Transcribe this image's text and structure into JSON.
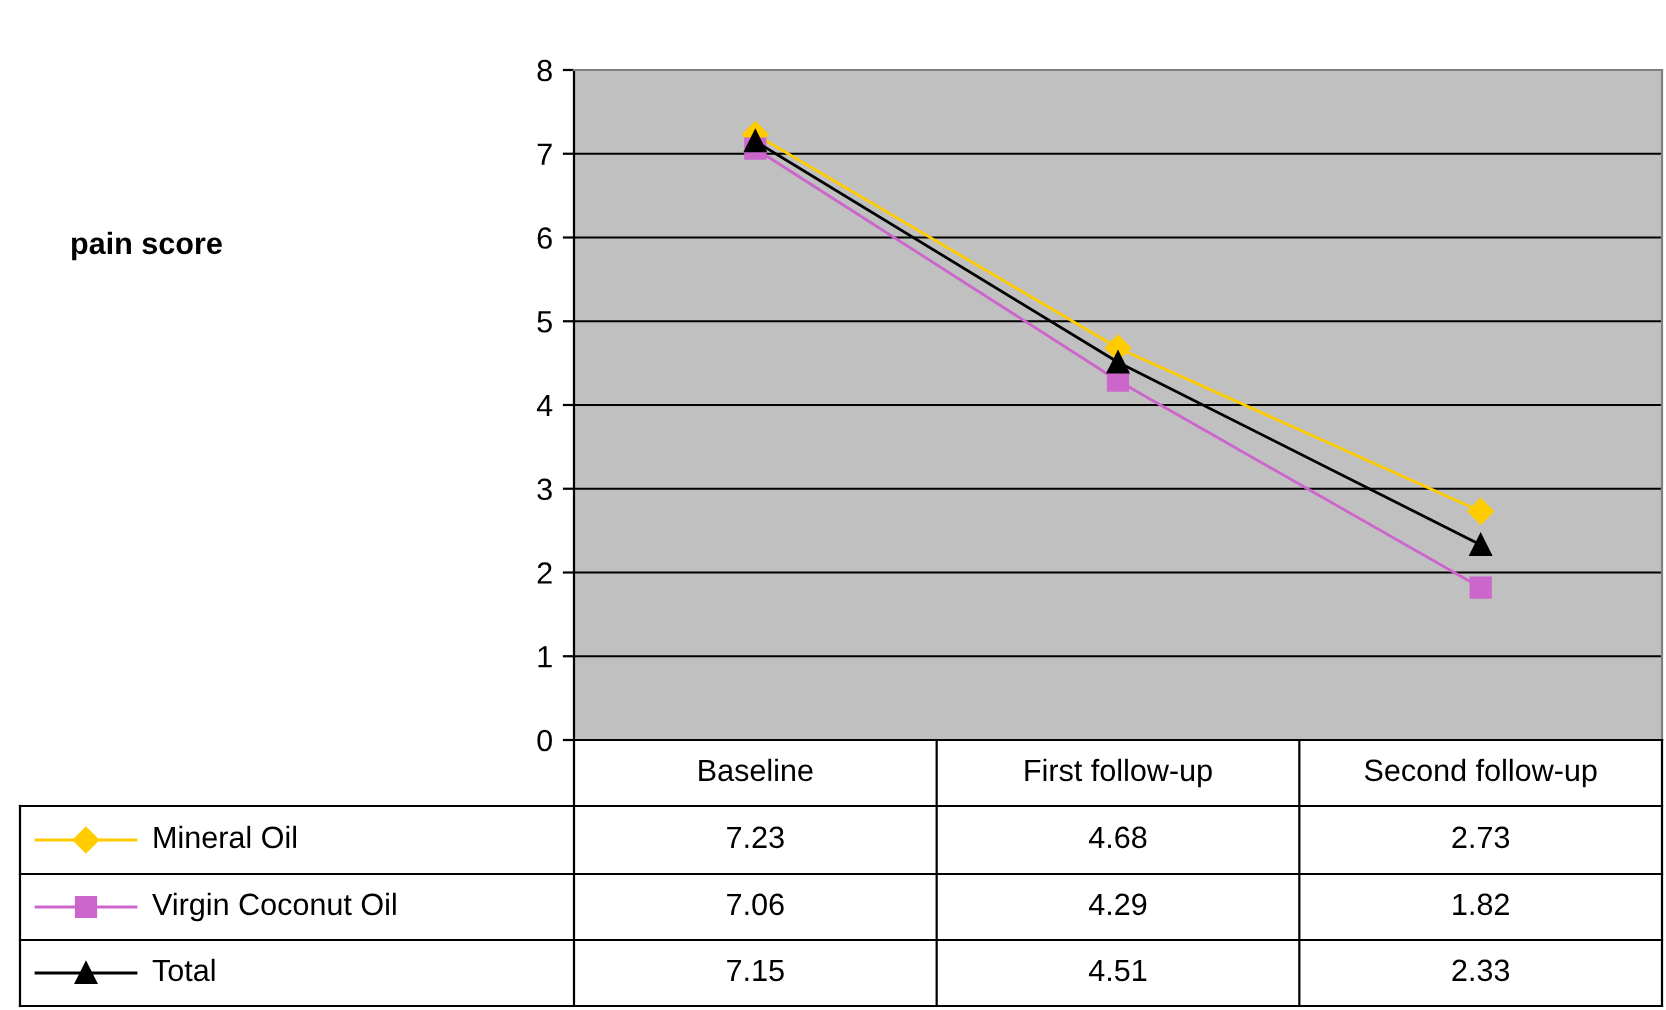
{
  "chart_data": {
    "type": "line",
    "annotations": [
      "pain score"
    ],
    "categories": [
      "Baseline",
      "First follow-up",
      "Second follow-up"
    ],
    "series": [
      {
        "name": "Mineral Oil",
        "color": "#ffcc00",
        "marker": "diamond",
        "values": [
          7.23,
          4.68,
          2.73
        ]
      },
      {
        "name": "Virgin Coconut Oil",
        "color": "#cc66cc",
        "marker": "square",
        "values": [
          7.06,
          4.29,
          1.82
        ]
      },
      {
        "name": "Total",
        "color": "#000000",
        "marker": "triangle",
        "values": [
          7.15,
          4.51,
          2.33
        ]
      }
    ],
    "ylim": [
      0,
      8
    ],
    "yticks": [
      0,
      1,
      2,
      3,
      4,
      5,
      6,
      7,
      8
    ],
    "grid": "y",
    "legend": "bottom left",
    "data_labels": true
  }
}
